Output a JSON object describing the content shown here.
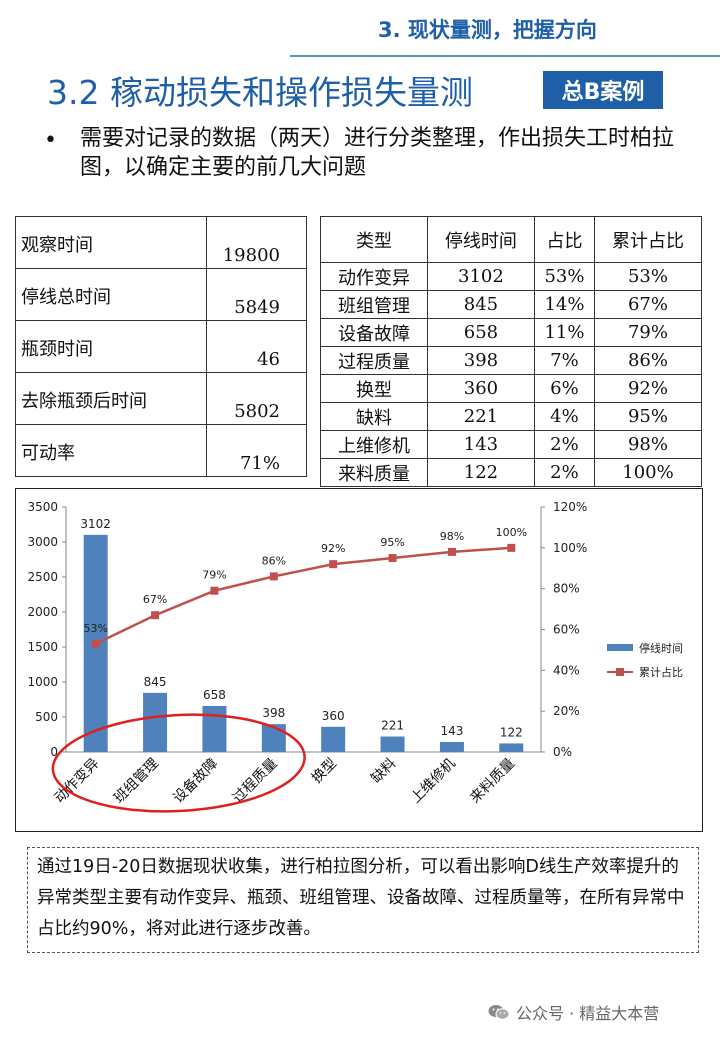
{
  "header": {
    "section": "3. 现状量测，把握方向",
    "title": "3.2 稼动损失和操作损失量测",
    "badge": "总B案例"
  },
  "bullet": {
    "dot": "•",
    "text": "需要对记录的数据（两天）进行分类整理，作出损失工时柏拉图，以确定主要的前几大问题"
  },
  "observation_table": [
    {
      "label": "观察时间",
      "value": "19800"
    },
    {
      "label": "停线总时间",
      "value": "5849"
    },
    {
      "label": "瓶颈时间",
      "value": "46"
    },
    {
      "label": "去除瓶颈后时间",
      "value": "5802"
    },
    {
      "label": "可动率",
      "value": "71%"
    }
  ],
  "loss_table": {
    "headers": [
      "类型",
      "停线时间",
      "占比",
      "累计占比"
    ],
    "rows": [
      [
        "动作变异",
        "3102",
        "53%",
        "53%"
      ],
      [
        "班组管理",
        "845",
        "14%",
        "67%"
      ],
      [
        "设备故障",
        "658",
        "11%",
        "79%"
      ],
      [
        "过程质量",
        "398",
        "7%",
        "86%"
      ],
      [
        "换型",
        "360",
        "6%",
        "92%"
      ],
      [
        "缺料",
        "221",
        "4%",
        "95%"
      ],
      [
        "上维修机",
        "143",
        "2%",
        "98%"
      ],
      [
        "来料质量",
        "122",
        "2%",
        "100%"
      ]
    ]
  },
  "chart_data": {
    "type": "bar",
    "categories": [
      "动作变异",
      "班组管理",
      "设备故障",
      "过程质量",
      "换型",
      "缺料",
      "上维修机",
      "来料质量"
    ],
    "series": [
      {
        "name": "停线时间",
        "type": "bar",
        "axis": "left",
        "values": [
          3102,
          845,
          658,
          398,
          360,
          221,
          143,
          122
        ],
        "labels": [
          "3102",
          "845",
          "658",
          "398",
          "360",
          "221",
          "143",
          "122"
        ]
      },
      {
        "name": "累计占比",
        "type": "line",
        "axis": "right",
        "values": [
          53,
          67,
          79,
          86,
          92,
          95,
          98,
          100
        ],
        "labels": [
          "53%",
          "67%",
          "79%",
          "86%",
          "92%",
          "95%",
          "98%",
          "100%"
        ]
      }
    ],
    "ylim": [
      0,
      3500
    ],
    "y_ticks": [
      "0",
      "500",
      "1000",
      "1500",
      "2000",
      "2500",
      "3000",
      "3500"
    ],
    "y2lim": [
      0,
      120
    ],
    "y2_ticks": [
      "0%",
      "20%",
      "40%",
      "60%",
      "80%",
      "100%",
      "120%"
    ],
    "legend": "right",
    "grid": false,
    "annotation": "red ellipse around the first four categories",
    "colors": {
      "bar": "#4f81bd",
      "line": "#c0504d",
      "ellipse": "#e02020"
    }
  },
  "note": "通过19日-20日数据现状收集，进行柏拉图分析，可以看出影响D线生产效率提升的异常类型主要有动作变异、瓶颈、班组管理、设备故障、过程质量等，在所有异常中占比约90%，将对此进行逐步改善。",
  "watermark": "公众号 · 精益大本营",
  "icons": {
    "wechat": "wechat-icon"
  }
}
